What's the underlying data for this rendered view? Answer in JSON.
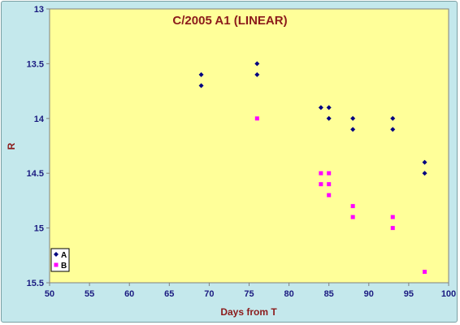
{
  "chart_data": {
    "type": "scatter",
    "title": "C/2005 A1 (LINEAR)",
    "xlabel": "Days from T",
    "ylabel": "R",
    "xlim": [
      50,
      100
    ],
    "ylim": [
      13,
      15.5
    ],
    "y_inverted": true,
    "x_ticks": [
      50,
      55,
      60,
      65,
      70,
      75,
      80,
      85,
      90,
      95,
      100
    ],
    "y_ticks": [
      13,
      13.5,
      14,
      14.5,
      15,
      15.5
    ],
    "y_tick_labels": [
      "13",
      "13.5",
      "14",
      "14.5",
      "15",
      "15.5"
    ],
    "grid": false,
    "legend_position": "bottom-left",
    "colors": {
      "plot_bg": "#ffff99",
      "outer_bg": "#c4e8ec",
      "title": "#8b1a1a",
      "axis_label": "#8b1a1a",
      "tick": "#1a1a80"
    },
    "series": [
      {
        "name": "A",
        "color": "#000080",
        "marker": "diamond",
        "points": [
          [
            69,
            13.6
          ],
          [
            69,
            13.7
          ],
          [
            76,
            13.5
          ],
          [
            76,
            13.6
          ],
          [
            84,
            13.9
          ],
          [
            85,
            13.9
          ],
          [
            85,
            14.0
          ],
          [
            88,
            14.0
          ],
          [
            88,
            14.1
          ],
          [
            93,
            14.0
          ],
          [
            93,
            14.1
          ],
          [
            97,
            14.4
          ],
          [
            97,
            14.5
          ]
        ]
      },
      {
        "name": "B",
        "color": "#ff00ff",
        "marker": "square",
        "points": [
          [
            76,
            14.0
          ],
          [
            84,
            14.5
          ],
          [
            84,
            14.6
          ],
          [
            85,
            14.5
          ],
          [
            85,
            14.6
          ],
          [
            85,
            14.7
          ],
          [
            88,
            14.8
          ],
          [
            88,
            14.9
          ],
          [
            93,
            14.9
          ],
          [
            93,
            15.0
          ],
          [
            97,
            15.4
          ]
        ]
      }
    ]
  }
}
